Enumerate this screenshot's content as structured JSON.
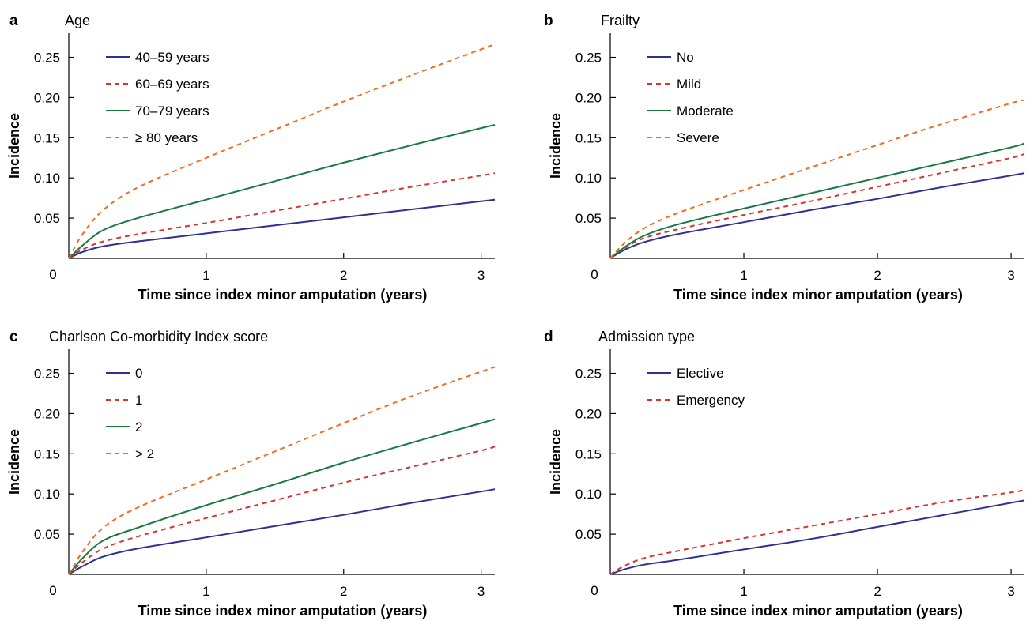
{
  "colors": {
    "navy": "#2e3192",
    "red": "#d7342e",
    "green": "#187a3f",
    "orange": "#f26b21"
  },
  "chart_data": [
    {
      "type": "line",
      "panel": "a",
      "title": "Age",
      "xlabel": "Time since index minor amputation (years)",
      "ylabel": "Incidence",
      "xlim": [
        0,
        3.1
      ],
      "ylim": [
        0,
        0.28
      ],
      "xticks": [
        0,
        1,
        2,
        3
      ],
      "xtick_labels": [
        "0",
        "1",
        "2",
        "3"
      ],
      "yticks": [
        0.05,
        0.1,
        0.15,
        0.2,
        0.25
      ],
      "ytick_labels": [
        "0.05",
        "0.10",
        "0.15",
        "0.20",
        "0.25"
      ],
      "legend": "top-left",
      "series": [
        {
          "name": "40–59 years",
          "color": "#2e3192",
          "dash": "solid",
          "x": [
            0,
            0.1,
            0.25,
            0.5,
            1,
            1.5,
            2,
            2.5,
            3,
            3.1
          ],
          "y": [
            0,
            0.008,
            0.015,
            0.021,
            0.031,
            0.041,
            0.051,
            0.061,
            0.071,
            0.073
          ]
        },
        {
          "name": "60–69 years",
          "color": "#d7342e",
          "dash": "dashed",
          "x": [
            0,
            0.1,
            0.25,
            0.5,
            1,
            1.5,
            2,
            2.5,
            3,
            3.1
          ],
          "y": [
            0,
            0.011,
            0.021,
            0.03,
            0.044,
            0.059,
            0.074,
            0.089,
            0.103,
            0.106
          ]
        },
        {
          "name": "70–79 years",
          "color": "#187a3f",
          "dash": "solid",
          "x": [
            0,
            0.1,
            0.25,
            0.5,
            1,
            1.5,
            2,
            2.5,
            3,
            3.1
          ],
          "y": [
            0,
            0.016,
            0.035,
            0.05,
            0.073,
            0.096,
            0.119,
            0.141,
            0.162,
            0.166
          ]
        },
        {
          "name": "≥ 80 years",
          "color": "#f26b21",
          "dash": "dashed",
          "x": [
            0,
            0.1,
            0.25,
            0.5,
            1,
            1.5,
            2,
            2.5,
            3,
            3.1
          ],
          "y": [
            0,
            0.03,
            0.06,
            0.088,
            0.125,
            0.16,
            0.195,
            0.228,
            0.26,
            0.266
          ]
        }
      ]
    },
    {
      "type": "line",
      "panel": "b",
      "title": "Frailty",
      "xlabel": "Time since index minor amputation (years)",
      "ylabel": "Incidence",
      "xlim": [
        0,
        3.1
      ],
      "ylim": [
        0,
        0.28
      ],
      "xticks": [
        0,
        1,
        2,
        3
      ],
      "xtick_labels": [
        "0",
        "1",
        "2",
        "3"
      ],
      "yticks": [
        0.05,
        0.1,
        0.15,
        0.2,
        0.25
      ],
      "ytick_labels": [
        "0.05",
        "0.10",
        "0.15",
        "0.20",
        "0.25"
      ],
      "legend": "top-left",
      "series": [
        {
          "name": "No",
          "color": "#2e3192",
          "dash": "solid",
          "x": [
            0,
            0.1,
            0.25,
            0.5,
            1,
            1.5,
            2,
            2.5,
            3,
            3.1
          ],
          "y": [
            0,
            0.01,
            0.02,
            0.03,
            0.045,
            0.06,
            0.074,
            0.089,
            0.103,
            0.106
          ]
        },
        {
          "name": "Mild",
          "color": "#d7342e",
          "dash": "dashed",
          "x": [
            0,
            0.1,
            0.25,
            0.5,
            1,
            1.5,
            2,
            2.5,
            3,
            3.1
          ],
          "y": [
            0,
            0.012,
            0.025,
            0.036,
            0.054,
            0.071,
            0.089,
            0.107,
            0.125,
            0.13
          ]
        },
        {
          "name": "Moderate",
          "color": "#187a3f",
          "dash": "solid",
          "x": [
            0,
            0.1,
            0.25,
            0.5,
            1,
            1.5,
            2,
            2.5,
            3,
            3.1
          ],
          "y": [
            0,
            0.013,
            0.028,
            0.042,
            0.062,
            0.081,
            0.1,
            0.119,
            0.138,
            0.143
          ]
        },
        {
          "name": "Severe",
          "color": "#f26b21",
          "dash": "dashed",
          "x": [
            0,
            0.1,
            0.25,
            0.5,
            1,
            1.5,
            2,
            2.5,
            3,
            3.1
          ],
          "y": [
            0,
            0.018,
            0.037,
            0.056,
            0.085,
            0.113,
            0.141,
            0.168,
            0.193,
            0.197
          ]
        }
      ]
    },
    {
      "type": "line",
      "panel": "c",
      "title": "Charlson Co-morbidity Index score",
      "xlabel": "Time since index minor amputation (years)",
      "ylabel": "Incidence",
      "xlim": [
        0,
        3.1
      ],
      "ylim": [
        0,
        0.28
      ],
      "xticks": [
        0,
        1,
        2,
        3
      ],
      "xtick_labels": [
        "0",
        "1",
        "2",
        "3"
      ],
      "yticks": [
        0.05,
        0.1,
        0.15,
        0.2,
        0.25
      ],
      "ytick_labels": [
        "0.05",
        "0.10",
        "0.15",
        "0.20",
        "0.25"
      ],
      "legend": "top-left",
      "series": [
        {
          "name": "0",
          "color": "#2e3192",
          "dash": "solid",
          "x": [
            0,
            0.1,
            0.25,
            0.5,
            1,
            1.5,
            2,
            2.5,
            3,
            3.1
          ],
          "y": [
            0,
            0.01,
            0.022,
            0.032,
            0.046,
            0.06,
            0.074,
            0.089,
            0.103,
            0.106
          ]
        },
        {
          "name": "1",
          "color": "#d7342e",
          "dash": "dashed",
          "x": [
            0,
            0.1,
            0.25,
            0.5,
            1,
            1.5,
            2,
            2.5,
            3,
            3.1
          ],
          "y": [
            0,
            0.015,
            0.032,
            0.047,
            0.07,
            0.092,
            0.114,
            0.134,
            0.154,
            0.159
          ]
        },
        {
          "name": "2",
          "color": "#187a3f",
          "dash": "solid",
          "x": [
            0,
            0.1,
            0.25,
            0.5,
            1,
            1.5,
            2,
            2.5,
            3,
            3.1
          ],
          "y": [
            0,
            0.02,
            0.042,
            0.058,
            0.086,
            0.112,
            0.139,
            0.164,
            0.188,
            0.193
          ]
        },
        {
          "name": "> 2",
          "color": "#f26b21",
          "dash": "dashed",
          "x": [
            0,
            0.1,
            0.25,
            0.5,
            1,
            1.5,
            2,
            2.5,
            3,
            3.1
          ],
          "y": [
            0,
            0.028,
            0.058,
            0.083,
            0.118,
            0.153,
            0.188,
            0.222,
            0.252,
            0.258
          ]
        }
      ]
    },
    {
      "type": "line",
      "panel": "d",
      "title": "Admission type",
      "xlabel": "Time since index minor amputation (years)",
      "ylabel": "Incidence",
      "xlim": [
        0,
        3.1
      ],
      "ylim": [
        0,
        0.28
      ],
      "xticks": [
        0,
        1,
        2,
        3
      ],
      "xtick_labels": [
        "0",
        "1",
        "2",
        "3"
      ],
      "yticks": [
        0.05,
        0.1,
        0.15,
        0.2,
        0.25
      ],
      "ytick_labels": [
        "0.05",
        "0.10",
        "0.15",
        "0.20",
        "0.25"
      ],
      "legend": "top-left",
      "series": [
        {
          "name": "Elective",
          "color": "#2e3192",
          "dash": "solid",
          "x": [
            0,
            0.1,
            0.25,
            0.5,
            1,
            1.5,
            2,
            2.5,
            3,
            3.1
          ],
          "y": [
            0,
            0.006,
            0.012,
            0.018,
            0.031,
            0.044,
            0.059,
            0.074,
            0.089,
            0.092
          ]
        },
        {
          "name": "Emergency",
          "color": "#d7342e",
          "dash": "dashed",
          "x": [
            0,
            0.1,
            0.25,
            0.5,
            1,
            1.5,
            2,
            2.5,
            3,
            3.1
          ],
          "y": [
            0,
            0.01,
            0.02,
            0.029,
            0.045,
            0.06,
            0.075,
            0.09,
            0.102,
            0.105
          ]
        }
      ]
    }
  ]
}
